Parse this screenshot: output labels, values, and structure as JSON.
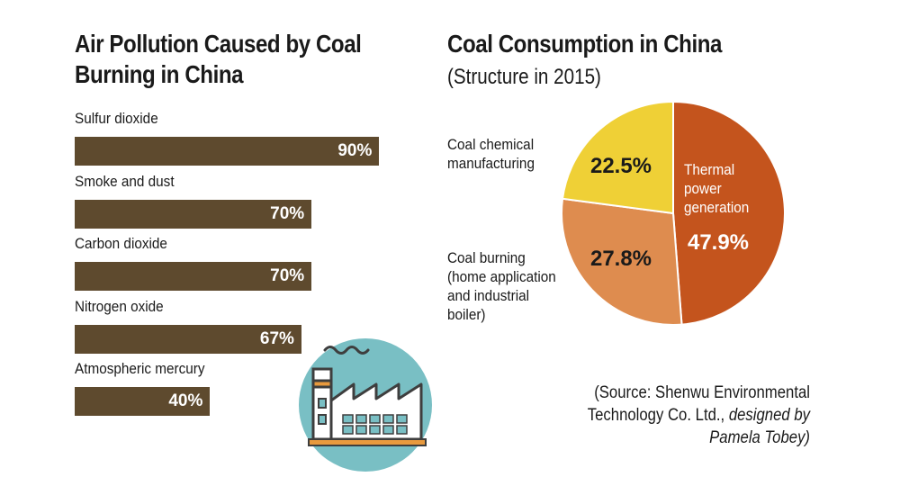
{
  "chart_data": [
    {
      "type": "bar",
      "title": "Air Pollution Caused by Coal Burning in China",
      "categories": [
        "Sulfur dioxide",
        "Smoke and dust",
        "Carbon dioxide",
        "Nitrogen oxide",
        "Atmospheric mercury"
      ],
      "values": [
        90,
        70,
        70,
        67,
        40
      ],
      "value_labels": [
        "90%",
        "70%",
        "70%",
        "67%",
        "40%"
      ],
      "orientation": "horizontal",
      "xlim": [
        0,
        100
      ],
      "grid": false,
      "colors": {
        "bar": "#5e4a2e",
        "value_text": "#ffffff"
      }
    },
    {
      "type": "pie",
      "title": "Coal Consumption in China",
      "subtitle": "(Structure in 2015)",
      "slices": [
        {
          "label": "Thermal power generation",
          "label_lines": [
            "Thermal",
            "power",
            "generation"
          ],
          "value": 47.9,
          "value_label": "47.9%",
          "color": "#c4541d"
        },
        {
          "label": "Coal burning (home application and industrial boiler)",
          "label_lines": [
            "Coal burning",
            "(home application",
            "and industrial",
            "boiler)"
          ],
          "value": 27.8,
          "value_label": "27.8%",
          "color": "#de8c4f"
        },
        {
          "label": "Coal chemical manufacturing",
          "label_lines": [
            "Coal chemical",
            "manufacturing"
          ],
          "value": 22.5,
          "value_label": "22.5%",
          "color": "#efd036"
        }
      ]
    }
  ],
  "source": {
    "line1": "(Source: Shenwu Environmental",
    "line2_plain": "Technology Co. Ltd., ",
    "line2_italic": "designed by",
    "line3": "Pamela Tobey)"
  },
  "colors": {
    "icon_circle": "#79bfc4",
    "factory_body": "#ffffff",
    "factory_outline": "#3e3e3e",
    "factory_stripe": "#e89a3e",
    "factory_windows": "#79bfc4"
  },
  "icons": {
    "illustration": "factory-icon",
    "smoke": "smoke-icon"
  }
}
